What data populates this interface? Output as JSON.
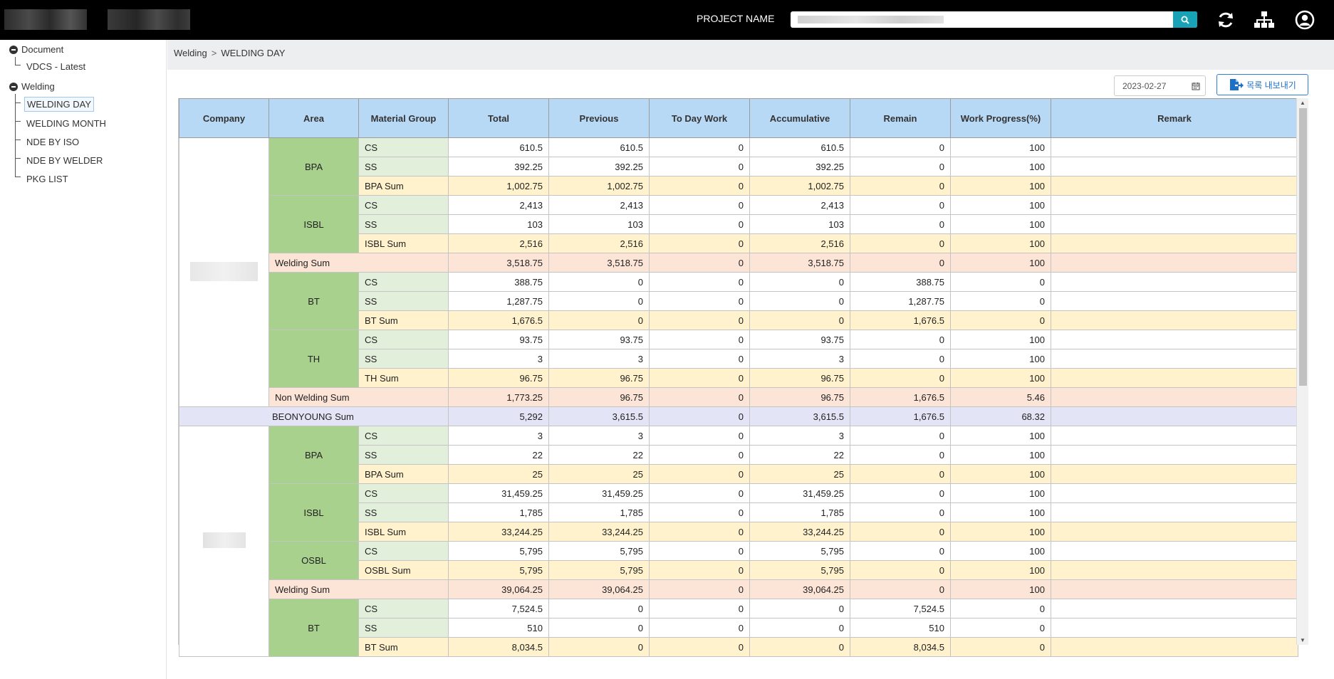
{
  "header": {
    "project_label": "PROJECT NAME",
    "search_value": "",
    "icons": [
      "refresh-icon",
      "sitemap-icon",
      "user-icon"
    ]
  },
  "sidebar": {
    "groups": [
      {
        "label": "Document",
        "items": [
          {
            "label": "VDCS - Latest"
          }
        ]
      },
      {
        "label": "Welding",
        "items": [
          {
            "label": "WELDING DAY",
            "active": true
          },
          {
            "label": "WELDING MONTH"
          },
          {
            "label": "NDE BY ISO"
          },
          {
            "label": "NDE BY WELDER"
          },
          {
            "label": "PKG LIST"
          }
        ]
      }
    ]
  },
  "breadcrumb": {
    "parent": "Welding",
    "separator": ">",
    "current": "WELDING DAY"
  },
  "toolbar": {
    "date": "2023-02-27",
    "export_label": "목록 내보내기"
  },
  "grid": {
    "columns": [
      "Company",
      "Area",
      "Material Group",
      "Total",
      "Previous",
      "To Day Work",
      "Accumulative",
      "Remain",
      "Work Progress(%)",
      "Remark"
    ],
    "rows": [
      {
        "area": "BPA",
        "mat": "CS",
        "total": "610.5",
        "prev": "610.5",
        "today": "0",
        "acc": "610.5",
        "remain": "0",
        "prog": "100"
      },
      {
        "mat": "SS",
        "total": "392.25",
        "prev": "392.25",
        "today": "0",
        "acc": "392.25",
        "remain": "0",
        "prog": "100"
      },
      {
        "mat": "BPA Sum",
        "total": "1,002.75",
        "prev": "1,002.75",
        "today": "0",
        "acc": "1,002.75",
        "remain": "0",
        "prog": "100"
      },
      {
        "area": "ISBL",
        "mat": "CS",
        "total": "2,413",
        "prev": "2,413",
        "today": "0",
        "acc": "2,413",
        "remain": "0",
        "prog": "100"
      },
      {
        "mat": "SS",
        "total": "103",
        "prev": "103",
        "today": "0",
        "acc": "103",
        "remain": "0",
        "prog": "100"
      },
      {
        "mat": "ISBL Sum",
        "total": "2,516",
        "prev": "2,516",
        "today": "0",
        "acc": "2,516",
        "remain": "0",
        "prog": "100"
      },
      {
        "label": "Welding Sum",
        "total": "3,518.75",
        "prev": "3,518.75",
        "today": "0",
        "acc": "3,518.75",
        "remain": "0",
        "prog": "100"
      },
      {
        "area": "BT",
        "mat": "CS",
        "total": "388.75",
        "prev": "0",
        "today": "0",
        "acc": "0",
        "remain": "388.75",
        "prog": "0"
      },
      {
        "mat": "SS",
        "total": "1,287.75",
        "prev": "0",
        "today": "0",
        "acc": "0",
        "remain": "1,287.75",
        "prog": "0"
      },
      {
        "mat": "BT Sum",
        "total": "1,676.5",
        "prev": "0",
        "today": "0",
        "acc": "0",
        "remain": "1,676.5",
        "prog": "0"
      },
      {
        "area": "TH",
        "mat": "CS",
        "total": "93.75",
        "prev": "93.75",
        "today": "0",
        "acc": "93.75",
        "remain": "0",
        "prog": "100"
      },
      {
        "mat": "SS",
        "total": "3",
        "prev": "3",
        "today": "0",
        "acc": "3",
        "remain": "0",
        "prog": "100"
      },
      {
        "mat": "TH Sum",
        "total": "96.75",
        "prev": "96.75",
        "today": "0",
        "acc": "96.75",
        "remain": "0",
        "prog": "100"
      },
      {
        "label": "Non Welding Sum",
        "total": "1,773.25",
        "prev": "96.75",
        "today": "0",
        "acc": "96.75",
        "remain": "1,676.5",
        "prog": "5.46"
      },
      {
        "label": "BEONYOUNG Sum",
        "total": "5,292",
        "prev": "3,615.5",
        "today": "0",
        "acc": "3,615.5",
        "remain": "1,676.5",
        "prog": "68.32"
      },
      {
        "area": "BPA",
        "mat": "CS",
        "total": "3",
        "prev": "3",
        "today": "0",
        "acc": "3",
        "remain": "0",
        "prog": "100"
      },
      {
        "mat": "SS",
        "total": "22",
        "prev": "22",
        "today": "0",
        "acc": "22",
        "remain": "0",
        "prog": "100"
      },
      {
        "mat": "BPA Sum",
        "total": "25",
        "prev": "25",
        "today": "0",
        "acc": "25",
        "remain": "0",
        "prog": "100"
      },
      {
        "area": "ISBL",
        "mat": "CS",
        "total": "31,459.25",
        "prev": "31,459.25",
        "today": "0",
        "acc": "31,459.25",
        "remain": "0",
        "prog": "100"
      },
      {
        "mat": "SS",
        "total": "1,785",
        "prev": "1,785",
        "today": "0",
        "acc": "1,785",
        "remain": "0",
        "prog": "100"
      },
      {
        "mat": "ISBL Sum",
        "total": "33,244.25",
        "prev": "33,244.25",
        "today": "0",
        "acc": "33,244.25",
        "remain": "0",
        "prog": "100"
      },
      {
        "area": "OSBL",
        "mat": "CS",
        "total": "5,795",
        "prev": "5,795",
        "today": "0",
        "acc": "5,795",
        "remain": "0",
        "prog": "100"
      },
      {
        "mat": "OSBL Sum",
        "total": "5,795",
        "prev": "5,795",
        "today": "0",
        "acc": "5,795",
        "remain": "0",
        "prog": "100"
      },
      {
        "label": "Welding Sum",
        "total": "39,064.25",
        "prev": "39,064.25",
        "today": "0",
        "acc": "39,064.25",
        "remain": "0",
        "prog": "100"
      },
      {
        "area": "BT",
        "mat": "CS",
        "total": "7,524.5",
        "prev": "0",
        "today": "0",
        "acc": "0",
        "remain": "7,524.5",
        "prog": "0"
      },
      {
        "mat": "SS",
        "total": "510",
        "prev": "0",
        "today": "0",
        "acc": "0",
        "remain": "510",
        "prog": "0"
      },
      {
        "mat": "BT Sum",
        "total": "8,034.5",
        "prev": "0",
        "today": "0",
        "acc": "0",
        "remain": "8,034.5",
        "prog": "0"
      }
    ]
  }
}
